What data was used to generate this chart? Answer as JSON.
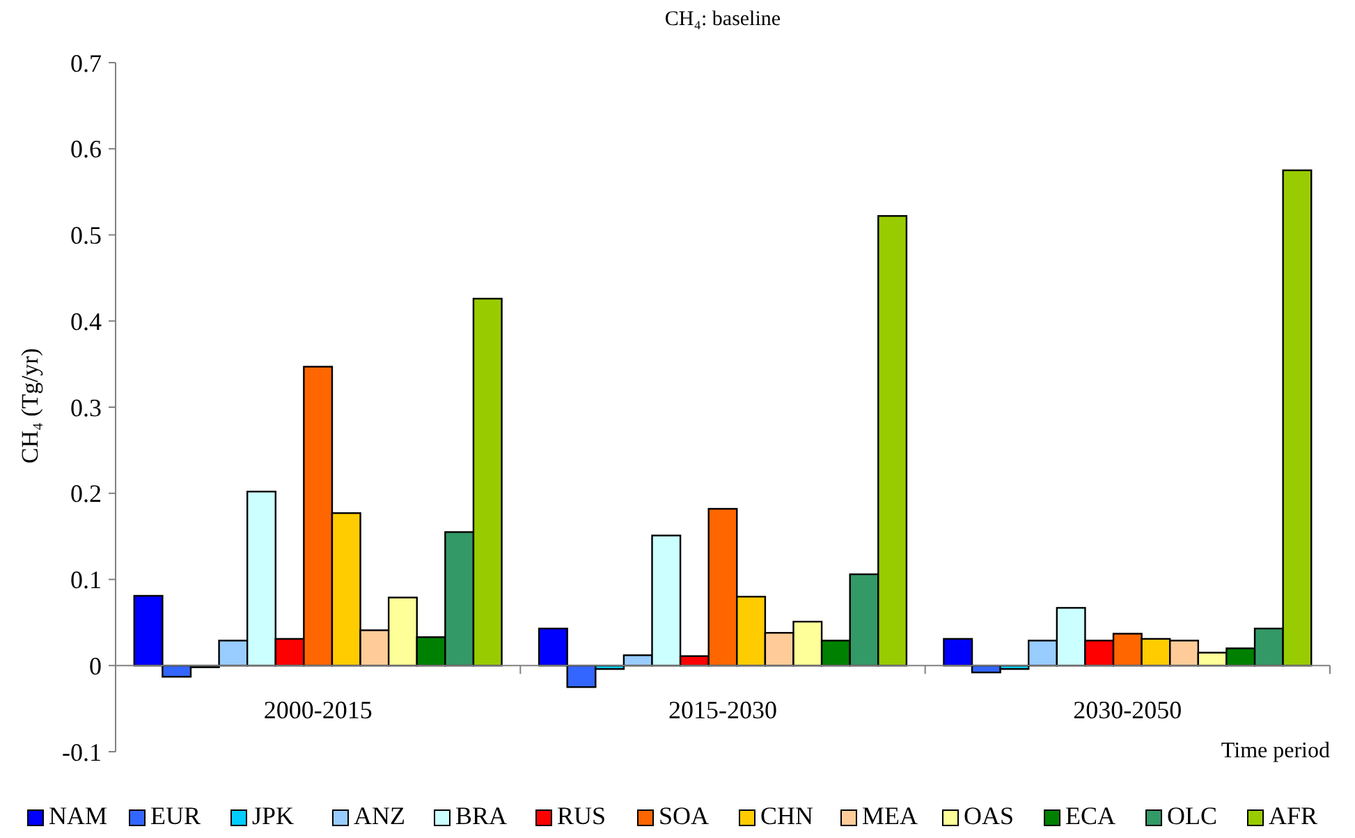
{
  "chart_data": {
    "type": "bar",
    "title": "CH₄: baseline",
    "xlabel": "Time period",
    "ylabel": "CH₄ (Tg/yr)",
    "categories": [
      "2000-2015",
      "2015-2030",
      "2030-2050"
    ],
    "ylim": [
      -0.1,
      0.7
    ],
    "yticks": [
      -0.1,
      0,
      0.1,
      0.2,
      0.3,
      0.4,
      0.5,
      0.6,
      0.7
    ],
    "grid": false,
    "legend": "bottom",
    "series": [
      {
        "name": "NAM",
        "color": "#0000ff",
        "values": [
          0.081,
          0.043,
          0.031
        ]
      },
      {
        "name": "EUR",
        "color": "#3366ff",
        "values": [
          -0.013,
          -0.025,
          -0.008
        ]
      },
      {
        "name": "JPK",
        "color": "#00ccff",
        "values": [
          -0.002,
          -0.004,
          -0.004
        ]
      },
      {
        "name": "ANZ",
        "color": "#99ccff",
        "values": [
          0.029,
          0.012,
          0.029
        ]
      },
      {
        "name": "BRA",
        "color": "#ccffff",
        "values": [
          0.202,
          0.151,
          0.067
        ]
      },
      {
        "name": "RUS",
        "color": "#ff0000",
        "values": [
          0.031,
          0.011,
          0.029
        ]
      },
      {
        "name": "SOA",
        "color": "#ff6600",
        "values": [
          0.347,
          0.182,
          0.037
        ]
      },
      {
        "name": "CHN",
        "color": "#ffcc00",
        "values": [
          0.177,
          0.08,
          0.031
        ]
      },
      {
        "name": "MEA",
        "color": "#ffcc99",
        "values": [
          0.041,
          0.038,
          0.029
        ]
      },
      {
        "name": "OAS",
        "color": "#ffff99",
        "values": [
          0.079,
          0.051,
          0.015
        ]
      },
      {
        "name": "ECA",
        "color": "#008000",
        "values": [
          0.033,
          0.029,
          0.02
        ]
      },
      {
        "name": "OLC",
        "color": "#339966",
        "values": [
          0.155,
          0.106,
          0.043
        ]
      },
      {
        "name": "AFR",
        "color": "#99cc00",
        "values": [
          0.426,
          0.522,
          0.575
        ]
      }
    ]
  }
}
